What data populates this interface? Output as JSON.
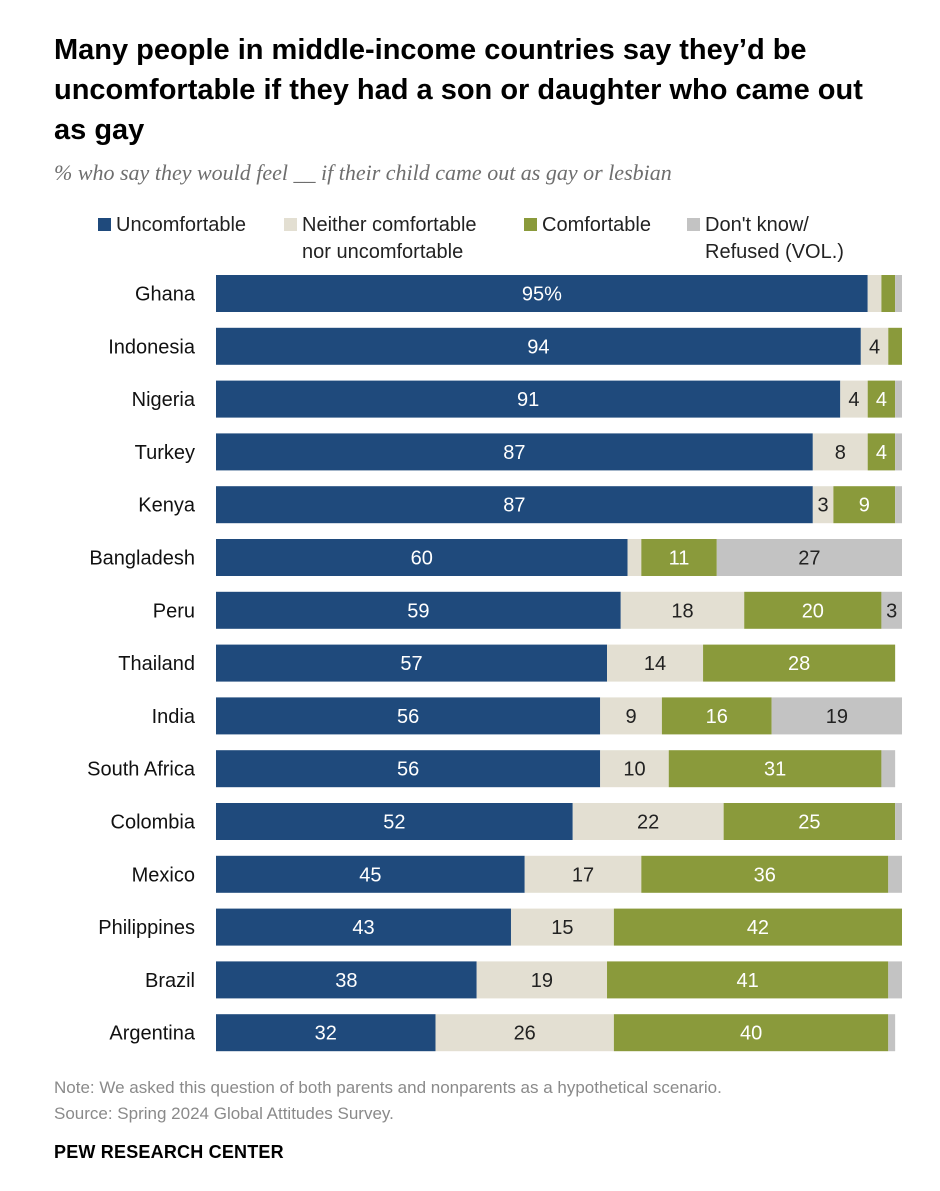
{
  "title": "Many people in middle-income countries say they’d be uncomfortable if they had a son or daughter who came out as gay",
  "subtitle": "% who say they would feel __ if their child came out as gay or lesbian",
  "note": "Note: We asked this question of both parents and nonparents as a hypothetical scenario.",
  "source": "Source: Spring 2024 Global Attitudes Survey.",
  "brand": "PEW RESEARCH CENTER",
  "legend": [
    {
      "label": "Uncomfortable",
      "color": "#1f4a7c"
    },
    {
      "label": "Neither comfortable\nnor uncomfortable",
      "color": "#e3dfd2"
    },
    {
      "label": "Comfortable",
      "color": "#8a9a3b"
    },
    {
      "label": "Don't know/\nRefused (VOL.)",
      "color": "#c3c3c3"
    }
  ],
  "chart_data": {
    "type": "bar",
    "orientation": "horizontal",
    "stacked": true,
    "categories": [
      "Ghana",
      "Indonesia",
      "Nigeria",
      "Turkey",
      "Kenya",
      "Bangladesh",
      "Peru",
      "Thailand",
      "India",
      "South Africa",
      "Colombia",
      "Mexico",
      "Philippines",
      "Brazil",
      "Argentina"
    ],
    "series": [
      {
        "name": "Uncomfortable",
        "color": "#1f4a7c",
        "values": [
          95,
          94,
          91,
          87,
          87,
          60,
          59,
          57,
          56,
          56,
          52,
          45,
          43,
          38,
          32
        ],
        "labels": [
          "95%",
          "94",
          "91",
          "87",
          "87",
          "60",
          "59",
          "57",
          "56",
          "56",
          "52",
          "45",
          "43",
          "38",
          "32"
        ]
      },
      {
        "name": "Neither comfortable nor uncomfortable",
        "color": "#e3dfd2",
        "values": [
          2,
          4,
          4,
          8,
          3,
          2,
          18,
          14,
          9,
          10,
          22,
          17,
          15,
          19,
          26
        ],
        "labels": [
          "",
          "4",
          "4",
          "8",
          "3",
          "",
          "18",
          "14",
          "9",
          "10",
          "22",
          "17",
          "15",
          "19",
          "26"
        ]
      },
      {
        "name": "Comfortable",
        "color": "#8a9a3b",
        "values": [
          2,
          2,
          4,
          4,
          9,
          11,
          20,
          28,
          16,
          31,
          25,
          36,
          42,
          41,
          40
        ],
        "labels": [
          "",
          "",
          "4",
          "4",
          "9",
          "11",
          "20",
          "28",
          "16",
          "31",
          "25",
          "36",
          "42",
          "41",
          "40"
        ]
      },
      {
        "name": "Don't know/Refused (VOL.)",
        "color": "#c3c3c3",
        "values": [
          1,
          0,
          1,
          1,
          1,
          27,
          3,
          0,
          19,
          2,
          1,
          2,
          0,
          2,
          1
        ],
        "labels": [
          "",
          "",
          "",
          "",
          "",
          "27",
          "3",
          "",
          "19",
          "",
          "",
          "",
          "",
          "",
          ""
        ]
      }
    ],
    "xlim": [
      0,
      100
    ],
    "grid": false,
    "legend_position": "top"
  }
}
